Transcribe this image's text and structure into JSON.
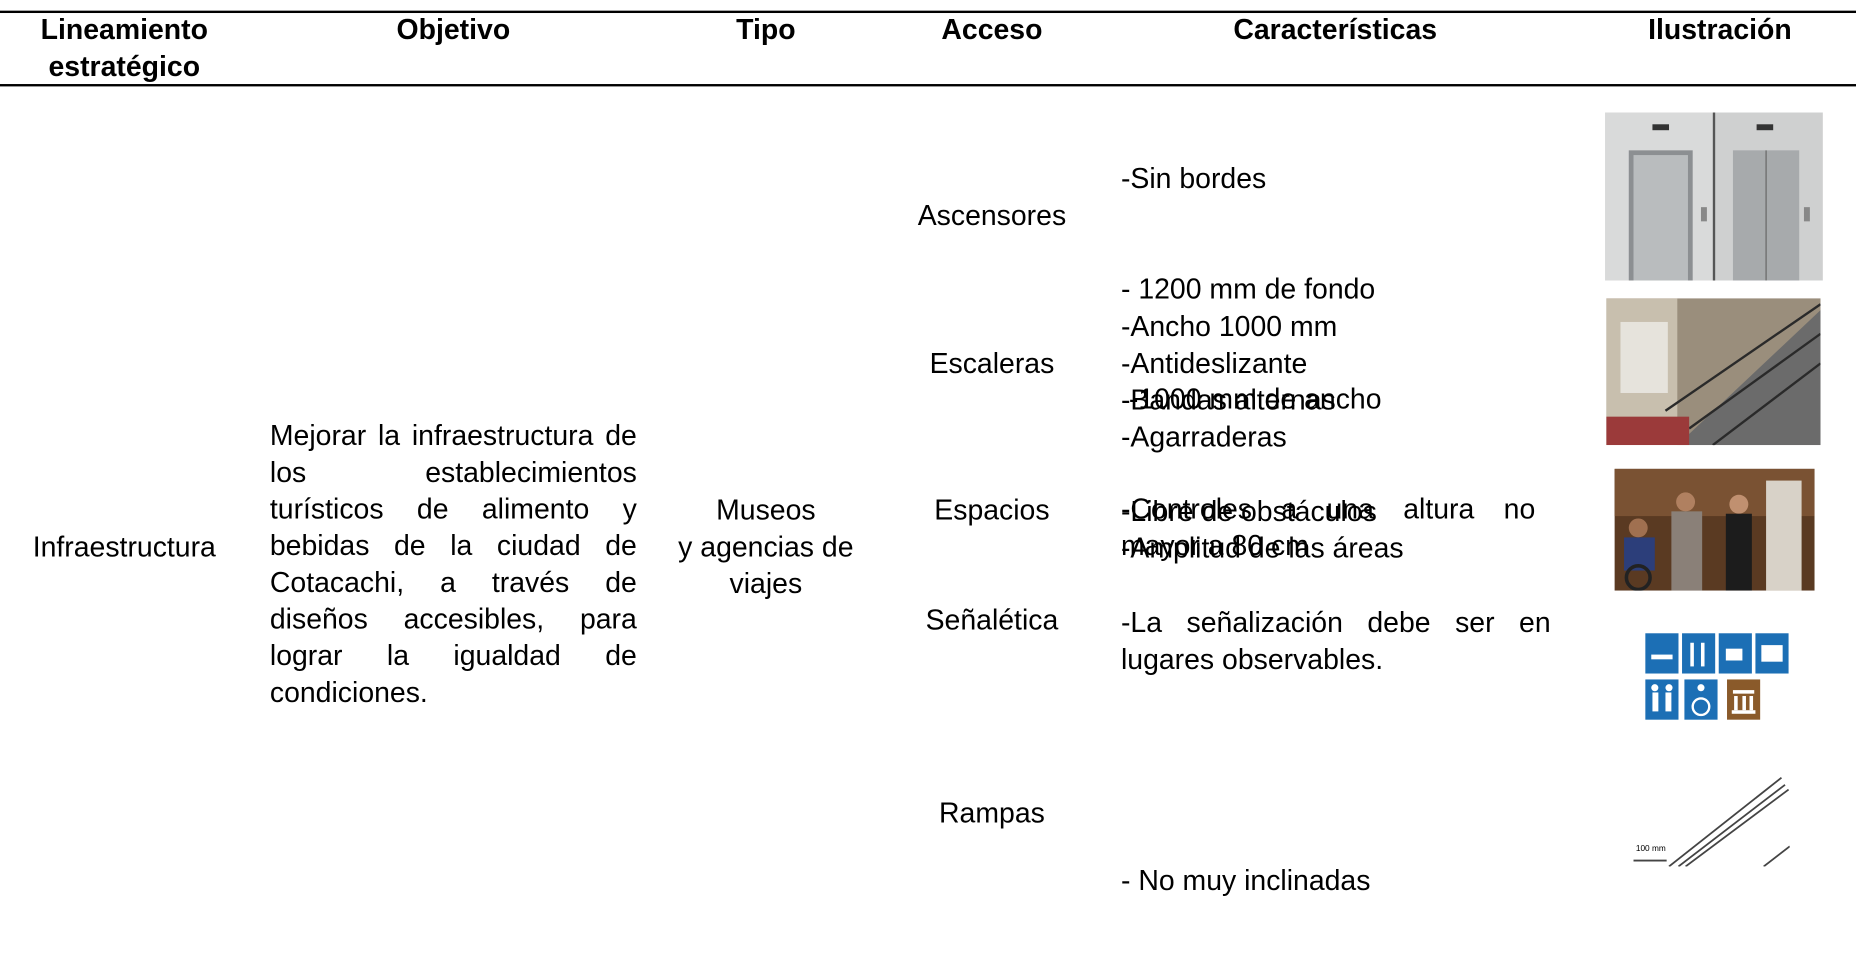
{
  "header": {
    "columns": [
      "Lineamiento estratégico",
      "Objetivo",
      "Tipo",
      "Acceso",
      "Características",
      "Ilustración"
    ]
  },
  "row": {
    "lineamiento": "Infraestructura",
    "objetivo": "Mejorar la infraestructura de los establecimientos turísticos de alimento y bebidas de la ciudad de Cotacachi, a través de diseños accesibles, para lograr la igualdad de condiciones.",
    "tipo": [
      "Museos",
      "y agencias de",
      "viajes"
    ]
  },
  "accesos": [
    {
      "acceso": "Ascensores",
      "caracteristicas": [
        "-Sin bordes",
        "- 1200 mm de fondo",
        " -1000 mm de ancho",
        "-Controles a una altura no mayor a 80 cm"
      ]
    },
    {
      "acceso": "Escaleras",
      "caracteristicas": [
        "-Ancho 1000 mm",
        "-Antideslizante",
        "-Bandas alternas",
        "-Agarraderas"
      ]
    },
    {
      "acceso": "Espacios",
      "caracteristicas": [
        "-Libre de obstáculos",
        "-Amplitud de las áreas"
      ]
    },
    {
      "acceso": "Señalética",
      "caracteristicas": [
        "-La señalización debe ser en lugares observables."
      ]
    },
    {
      "acceso": "Rampas",
      "caracteristicas": [
        "- No muy inclinadas"
      ]
    }
  ]
}
